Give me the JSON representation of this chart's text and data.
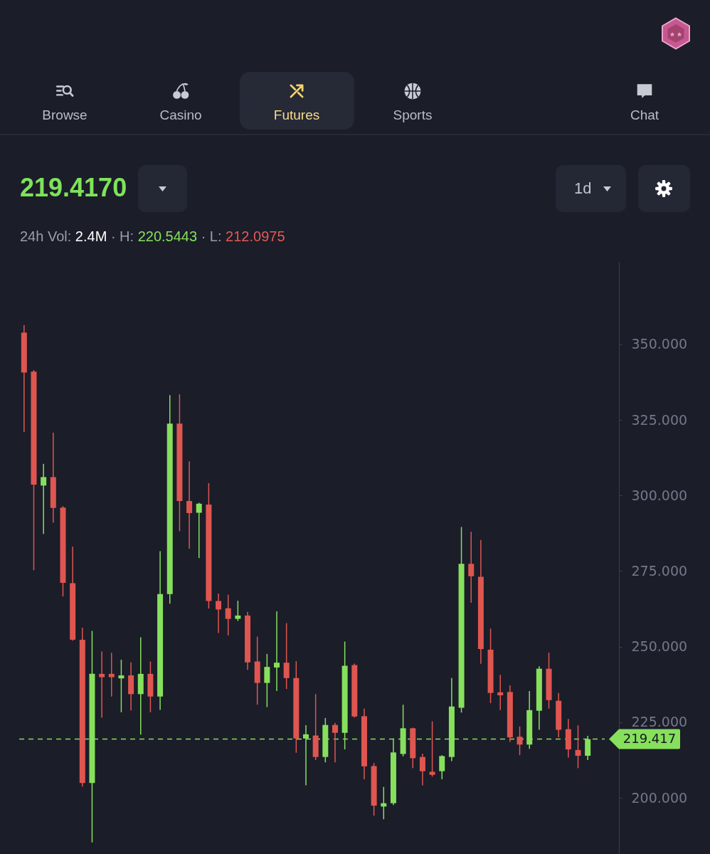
{
  "chart_data": [
    {
      "type": "other",
      "title": "219.4170",
      "subtitle": "24h Vol: 2.4M · H: 220.5443 · L: 212.0975",
      "categories": [
        "Browse",
        "Casino",
        "Futures",
        "Sports",
        null,
        "Chat"
      ],
      "annotations": [
        "1d"
      ]
    },
    {
      "type": "candlestick",
      "categories": [
        null,
        null,
        null,
        null,
        null,
        null,
        null,
        null,
        null,
        null,
        null,
        null,
        null,
        null,
        null,
        null,
        null,
        null,
        null,
        null,
        null,
        null,
        null,
        null,
        null,
        null,
        null,
        null,
        null,
        null,
        null,
        null,
        null,
        null,
        null,
        null,
        null,
        null,
        null,
        null,
        null,
        null,
        null,
        null,
        null,
        null,
        null,
        null,
        null,
        null,
        null,
        null,
        null,
        null,
        null,
        null,
        null,
        null,
        null
      ],
      "ohlc": [
        [
          353.9,
          356.4,
          321.0,
          340.7
        ],
        [
          341.0,
          341.5,
          275.3,
          303.6
        ],
        [
          303.3,
          310.5,
          287.3,
          306.1
        ],
        [
          306.1,
          320.8,
          291.0,
          295.9
        ],
        [
          296.0,
          296.5,
          266.6,
          271.1
        ],
        [
          271.0,
          283.1,
          252.0,
          252.3
        ],
        [
          252.3,
          256.3,
          203.7,
          204.9
        ],
        [
          204.9,
          255.2,
          185.2,
          241.0
        ],
        [
          241.0,
          248.4,
          226.5,
          239.9
        ],
        [
          241.0,
          248.0,
          233.5,
          239.9
        ],
        [
          239.5,
          245.7,
          228.3,
          240.5
        ],
        [
          240.5,
          244.8,
          228.9,
          234.3
        ],
        [
          234.3,
          253.1,
          220.9,
          241.0
        ],
        [
          241.0,
          245.1,
          228.3,
          233.5
        ],
        [
          233.5,
          281.6,
          229.1,
          267.4
        ],
        [
          267.4,
          333.2,
          264.2,
          323.8
        ],
        [
          323.8,
          333.5,
          288.2,
          298.2
        ],
        [
          298.2,
          311.3,
          282.4,
          294.2
        ],
        [
          294.3,
          297.6,
          279.3,
          297.3
        ],
        [
          297.0,
          304.1,
          262.6,
          265.1
        ],
        [
          265.1,
          267.6,
          254.5,
          262.3
        ],
        [
          262.7,
          267.2,
          253.7,
          259.2
        ],
        [
          259.2,
          265.2,
          258.5,
          260.3
        ],
        [
          260.3,
          261.5,
          242.3,
          244.8
        ],
        [
          245.1,
          253.3,
          230.8,
          238.0
        ],
        [
          238.0,
          247.6,
          230.0,
          243.3
        ],
        [
          243.1,
          261.7,
          235.3,
          244.7
        ],
        [
          244.7,
          257.8,
          236.0,
          239.6
        ],
        [
          239.6,
          245.2,
          214.9,
          219.6
        ],
        [
          219.6,
          224.0,
          204.1,
          221.0
        ],
        [
          220.6,
          234.3,
          212.5,
          213.5
        ],
        [
          213.5,
          226.4,
          211.7,
          224.1
        ],
        [
          224.1,
          224.8,
          211.7,
          221.5
        ],
        [
          221.5,
          251.7,
          216.0,
          243.7
        ],
        [
          243.9,
          244.4,
          226.5,
          226.9
        ],
        [
          227.0,
          229.5,
          206.1,
          210.4
        ],
        [
          210.5,
          211.5,
          194.1,
          197.4
        ],
        [
          197.1,
          203.6,
          192.9,
          198.2
        ],
        [
          198.2,
          219.6,
          197.6,
          215.0
        ],
        [
          214.5,
          230.8,
          213.7,
          223.0
        ],
        [
          223.0,
          223.2,
          209.8,
          213.1
        ],
        [
          213.5,
          214.6,
          204.1,
          208.8
        ],
        [
          208.6,
          225.3,
          207.0,
          207.6
        ],
        [
          208.8,
          214.1,
          206.1,
          213.8
        ],
        [
          213.5,
          239.6,
          212.1,
          230.2
        ],
        [
          229.8,
          289.6,
          228.2,
          277.4
        ],
        [
          277.4,
          288.0,
          264.5,
          273.3
        ],
        [
          273.1,
          285.3,
          244.3,
          249.2
        ],
        [
          249.0,
          256.0,
          231.3,
          234.7
        ],
        [
          234.9,
          240.7,
          229.0,
          233.9
        ],
        [
          235.0,
          237.2,
          218.5,
          220.0
        ],
        [
          220.2,
          223.6,
          214.1,
          217.6
        ],
        [
          217.6,
          235.3,
          216.2,
          229.0
        ],
        [
          228.8,
          243.5,
          222.5,
          242.7
        ],
        [
          242.7,
          248.0,
          229.5,
          232.3
        ],
        [
          232.1,
          234.7,
          220.0,
          222.5
        ],
        [
          222.7,
          226.1,
          213.3,
          216.0
        ],
        [
          215.8,
          224.0,
          209.8,
          213.9
        ],
        [
          213.9,
          220.5,
          212.5,
          219.4
        ]
      ],
      "colors": [
        "#df5650",
        "#df5650",
        "#86e05c",
        "#df5650",
        "#df5650",
        "#df5650",
        "#df5650",
        "#86e05c",
        "#df5650",
        "#df5650",
        "#86e05c",
        "#df5650",
        "#86e05c",
        "#df5650",
        "#86e05c",
        "#86e05c",
        "#df5650",
        "#df5650",
        "#86e05c",
        "#df5650",
        "#df5650",
        "#df5650",
        "#86e05c",
        "#df5650",
        "#df5650",
        "#86e05c",
        "#86e05c",
        "#df5650",
        "#df5650",
        "#86e05c",
        "#df5650",
        "#86e05c",
        "#df5650",
        "#86e05c",
        "#df5650",
        "#df5650",
        "#df5650",
        "#86e05c",
        "#86e05c",
        "#86e05c",
        "#df5650",
        "#df5650",
        "#df5650",
        "#86e05c",
        "#86e05c",
        "#86e05c",
        "#df5650",
        "#df5650",
        "#df5650",
        "#df5650",
        "#df5650",
        "#df5650",
        "#86e05c",
        "#86e05c",
        "#df5650",
        "#df5650",
        "#df5650",
        "#df5650",
        "#86e05c"
      ],
      "ylim": [
        181.4,
        377.3
      ],
      "yticks": [
        {
          "value": 200,
          "label": "200.000"
        },
        {
          "value": 225,
          "label": "225.000"
        },
        {
          "value": 250,
          "label": "250.000"
        },
        {
          "value": 275,
          "label": "275.000"
        },
        {
          "value": 300,
          "label": "300.000"
        },
        {
          "value": 325,
          "label": "325.000"
        },
        {
          "value": 350,
          "label": "350.000"
        }
      ],
      "ref_lines": [
        {
          "axis": "y",
          "value": 219.417,
          "label": "219.417",
          "color": "#86e05c",
          "line_style": "dashed"
        }
      ],
      "tick_labels": "y"
    }
  ]
}
